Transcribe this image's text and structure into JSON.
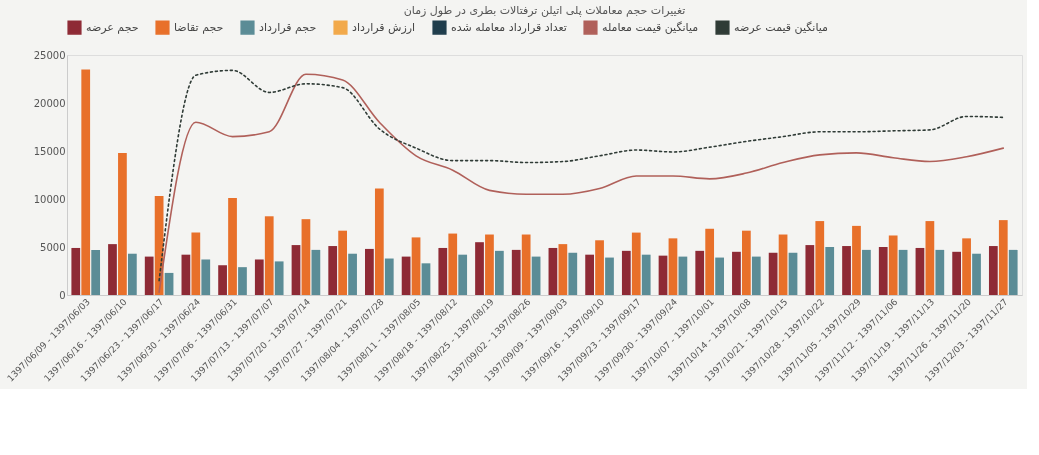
{
  "chart_data": {
    "type": "bar",
    "title": "تغییرات حجم معاملات پلی اتیلن ترفتالات بطری در طول زمان",
    "categories": [
      "1397/06/09 - 1397/06/03",
      "1397/06/16 - 1397/06/10",
      "1397/06/23 - 1397/06/17",
      "1397/06/30 - 1397/06/24",
      "1397/07/06 - 1397/06/31",
      "1397/07/13 - 1397/07/07",
      "1397/07/20 - 1397/07/14",
      "1397/07/27 - 1397/07/21",
      "1397/08/04 - 1397/07/28",
      "1397/08/11 - 1397/08/05",
      "1397/08/18 - 1397/08/12",
      "1397/08/25 - 1397/08/19",
      "1397/09/02 - 1397/08/26",
      "1397/09/09 - 1397/09/03",
      "1397/09/16 - 1397/09/10",
      "1397/09/23 - 1397/09/17",
      "1397/09/30 - 1397/09/24",
      "1397/10/07 - 1397/10/01",
      "1397/10/14 - 1397/10/08",
      "1397/10/21 - 1397/10/15",
      "1397/10/28 - 1397/10/22",
      "1397/11/05 - 1397/10/29",
      "1397/11/12 - 1397/11/06",
      "1397/11/19 - 1397/11/13",
      "1397/11/26 - 1397/11/20",
      "1397/12/03 - 1397/11/27"
    ],
    "series": [
      {
        "name": "حجم عرضه",
        "color": "#8e2a35",
        "values": [
          4900,
          5300,
          4000,
          4200,
          3100,
          3700,
          5200,
          5100,
          4800,
          4000,
          4900,
          5500,
          4700,
          4900,
          4200,
          4600,
          4100,
          4600,
          4500,
          4400,
          5200,
          5100,
          5000,
          4900,
          4500,
          5100
        ]
      },
      {
        "name": "حجم تقاضا",
        "color": "#e8702a",
        "values": [
          23500,
          14800,
          10300,
          6500,
          10100,
          8200,
          7900,
          6700,
          11100,
          6000,
          6400,
          6300,
          6300,
          5300,
          5700,
          6500,
          5900,
          6900,
          6700,
          6300,
          7700,
          7200,
          6200,
          7700,
          5900,
          7800
        ]
      },
      {
        "name": "حجم قرارداد",
        "color": "#5b8c96",
        "values": [
          4700,
          4300,
          2300,
          3700,
          2900,
          3500,
          4700,
          4300,
          3800,
          3300,
          4200,
          4600,
          4000,
          4400,
          3900,
          4200,
          4000,
          3900,
          4000,
          4400,
          5000,
          4700,
          4700,
          4700,
          4300,
          4700
        ]
      },
      {
        "name": "ارزش قرارداد",
        "type": "line",
        "color": "#f2a94a",
        "values": [
          null,
          null,
          null,
          null,
          null,
          null,
          null,
          null,
          null,
          null,
          null,
          null,
          null,
          null,
          null,
          null,
          null,
          null,
          null,
          null,
          null,
          null,
          null,
          null,
          null,
          null
        ]
      },
      {
        "name": "تعداد قرارداد معامله شده",
        "type": "line",
        "color": "#1f3d4c",
        "values": [
          null,
          null,
          null,
          null,
          null,
          null,
          null,
          null,
          null,
          null,
          null,
          null,
          null,
          null,
          null,
          null,
          null,
          null,
          null,
          null,
          null,
          null,
          null,
          null,
          null,
          null
        ]
      },
      {
        "name": "میانگین قیمت معامله",
        "type": "line",
        "color": "#b0605a",
        "line_style": "solid",
        "values": [
          null,
          null,
          300,
          18000,
          16500,
          17000,
          23000,
          22400,
          18000,
          14500,
          13000,
          10900,
          10500,
          10500,
          11100,
          12400,
          12400,
          12100,
          12700,
          13800,
          14600,
          14800,
          14300,
          13900,
          14400,
          15300
        ]
      },
      {
        "name": "میانگین قیمت عرضه",
        "type": "line",
        "color": "#2f3b36",
        "line_style": "dotted",
        "values": [
          null,
          null,
          1500,
          22900,
          23400,
          21100,
          22000,
          21600,
          17300,
          15300,
          14000,
          14000,
          13800,
          13900,
          14500,
          15100,
          14900,
          15400,
          16000,
          16500,
          17000,
          17000,
          17100,
          17200,
          18600,
          18500
        ]
      }
    ],
    "ylim": [
      0,
      25000
    ],
    "yticks": [
      0,
      5000,
      10000,
      15000,
      20000,
      25000
    ],
    "legend": "top"
  }
}
